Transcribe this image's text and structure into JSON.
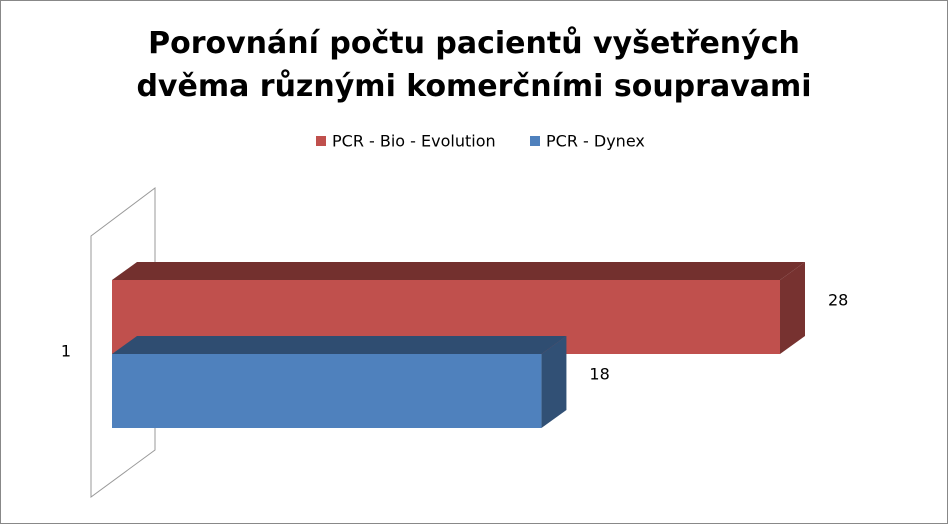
{
  "chart_data": {
    "type": "bar3d-horizontal",
    "title": "Porovnání počtu pacientů vyšetřených dvěma různými komerčními soupravami",
    "categories": [
      "1"
    ],
    "series": [
      {
        "name": "PCR - Bio - Evolution",
        "color": "#c0504d",
        "values": [
          28
        ]
      },
      {
        "name": "PCR - Dynex",
        "color": "#4f81bd",
        "values": [
          18
        ]
      }
    ],
    "legend": "top"
  }
}
